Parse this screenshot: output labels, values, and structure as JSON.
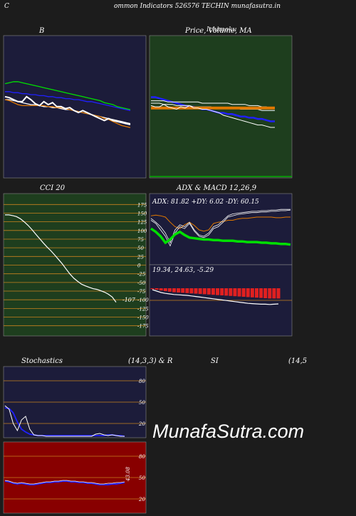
{
  "header": {
    "left_letter": "C",
    "title": "ommon  Indicators 526576  TECHIN  munafasutra.in"
  },
  "watermark": "MunafaSutra.com",
  "colors": {
    "page_bg": "#1c1c1c",
    "panel_navy": "#1c1c3a",
    "panel_green": "#1e3e1e",
    "panel_red": "#880000",
    "grid_orange": "#c8821e",
    "white": "#ffffff",
    "green_line": "#00e000",
    "blue_line": "#2020ff",
    "orange_line": "#e07800",
    "red_bar": "#e02020"
  },
  "panels": {
    "bollinger": {
      "title": "B"
    },
    "price_ma": {
      "title": "Price,  Volume,  MA",
      "title_overlay": "Ichimoku"
    },
    "cci": {
      "title": "CCI 20"
    },
    "adx_macd": {
      "title": "ADX  & MACD 12,26,9"
    },
    "stochastics": {
      "title_left": "Stochastics",
      "title_right": "(14,3,3) & R"
    },
    "rsi": {
      "title_left": "SI",
      "title_right": "(14,5"
    }
  },
  "chart_data": [
    {
      "id": "bollinger_bands",
      "type": "line",
      "title": "B",
      "x": [
        1,
        2,
        3,
        4,
        5,
        6,
        7,
        8,
        9,
        10,
        11,
        12,
        13,
        14,
        15,
        16,
        17,
        18,
        19,
        20,
        21,
        22,
        23,
        24,
        25,
        26,
        27,
        28,
        29,
        30
      ],
      "ylim": [
        0,
        100
      ],
      "series": [
        {
          "color": "#00e000",
          "values": [
            66,
            67,
            68,
            68,
            67,
            66,
            65,
            64,
            63,
            62,
            61,
            60,
            59,
            58,
            57,
            56,
            55,
            54,
            53,
            52,
            51,
            50,
            49,
            47,
            46,
            45,
            43,
            42,
            41,
            40
          ]
        },
        {
          "color": "#2020ff",
          "values": [
            58,
            58,
            57,
            57,
            56,
            56,
            55,
            55,
            54,
            54,
            53,
            53,
            52,
            52,
            51,
            51,
            50,
            50,
            49,
            48,
            48,
            47,
            46,
            45,
            44,
            43,
            42,
            41,
            40,
            39
          ]
        },
        {
          "color": "#ffffff",
          "values": [
            50,
            50,
            49,
            48,
            47,
            46,
            45,
            45,
            44,
            43,
            43,
            42,
            42,
            41,
            40,
            40,
            39,
            38,
            37,
            36,
            35,
            34,
            33,
            32,
            31,
            30,
            29,
            28,
            27,
            26
          ]
        },
        {
          "color": "#e07800",
          "values": [
            50,
            49,
            47,
            45,
            44,
            44,
            44,
            44,
            44,
            44,
            43,
            43,
            42,
            42,
            41,
            40,
            39,
            38,
            37,
            36,
            35,
            34,
            33,
            31,
            30,
            28,
            26,
            24,
            23,
            22
          ]
        },
        {
          "color": "#ffffff",
          "values": [
            53,
            52,
            50,
            48,
            48,
            53,
            50,
            46,
            44,
            48,
            45,
            47,
            43,
            43,
            41,
            42,
            39,
            37,
            39,
            37,
            35,
            33,
            31,
            29,
            31,
            29,
            28,
            27,
            26,
            25
          ]
        }
      ]
    },
    {
      "id": "price_volume_ma",
      "type": "line",
      "title": "Price,  Volume,  MA",
      "x": [
        1,
        2,
        3,
        4,
        5,
        6,
        7,
        8,
        9,
        10,
        11,
        12,
        13,
        14,
        15,
        16,
        17,
        18,
        19,
        20,
        21,
        22,
        23,
        24,
        25,
        26,
        27,
        28,
        29,
        30
      ],
      "ylim": [
        0,
        100
      ],
      "series": [
        {
          "color": "#2020ff",
          "values": [
            55,
            55,
            54,
            53,
            52,
            51,
            50,
            49,
            48,
            47,
            47,
            46,
            45,
            45,
            44,
            43,
            42,
            42,
            41,
            41,
            40,
            39,
            39,
            38,
            38,
            37,
            37,
            36,
            35,
            35
          ]
        },
        {
          "color": "#ffffff",
          "values": [
            52,
            52,
            52,
            52,
            51,
            51,
            51,
            51,
            51,
            51,
            51,
            51,
            50,
            50,
            50,
            50,
            50,
            50,
            50,
            49,
            49,
            49,
            49,
            48,
            48,
            48,
            47,
            47,
            46,
            46
          ]
        },
        {
          "color": "#ffffff",
          "values": [
            50,
            50,
            50,
            49,
            49,
            49,
            48,
            48,
            48,
            48,
            47,
            47,
            47,
            47,
            47,
            46,
            46,
            46,
            46,
            46,
            46,
            45,
            45,
            45,
            45,
            45,
            44,
            44,
            44,
            44
          ]
        },
        {
          "color": "#e07800",
          "values": [
            46,
            46,
            46,
            46,
            46,
            46,
            46,
            46,
            46,
            46,
            46,
            46,
            46,
            46,
            46,
            46,
            46,
            46,
            46,
            46,
            46,
            46,
            46,
            46,
            46,
            46,
            46,
            46,
            46,
            46
          ]
        },
        {
          "color": "#ffffff",
          "values": [
            48,
            47,
            47,
            49,
            47,
            46,
            45,
            47,
            46,
            48,
            46,
            46,
            45,
            45,
            44,
            43,
            42,
            40,
            39,
            38,
            37,
            36,
            35,
            34,
            33,
            32,
            32,
            31,
            30,
            30
          ]
        }
      ]
    },
    {
      "id": "cci",
      "type": "line",
      "title": "CCI 20",
      "yticks": [
        175,
        150,
        125,
        100,
        75,
        50,
        25,
        0,
        -25,
        -50,
        -75,
        -100,
        -125,
        -150,
        -175
      ],
      "ylim": [
        -190,
        190
      ],
      "last_value_label": "-107",
      "x": [
        1,
        2,
        3,
        4,
        5,
        6,
        7,
        8,
        9,
        10,
        11,
        12,
        13,
        14,
        15,
        16,
        17,
        18,
        19,
        20,
        21,
        22,
        23,
        24,
        25,
        26,
        27,
        28,
        29,
        30
      ],
      "values": [
        145,
        145,
        143,
        140,
        134,
        125,
        115,
        103,
        90,
        77,
        64,
        52,
        41,
        29,
        16,
        3,
        -12,
        -26,
        -38,
        -47,
        -55,
        -60,
        -64,
        -68,
        -70,
        -74,
        -78,
        -84,
        -92,
        -107
      ]
    },
    {
      "id": "adx",
      "type": "line",
      "title": "ADX  & MACD 12,26,9",
      "label": "ADX: 81.82  +DY: 6.02  -DY: 60.15",
      "ylim": [
        0,
        100
      ],
      "x": [
        1,
        2,
        3,
        4,
        5,
        6,
        7,
        8,
        9,
        10,
        11,
        12,
        13,
        14,
        15,
        16,
        17,
        18,
        19,
        20,
        21,
        22,
        23,
        24,
        25,
        26,
        27,
        28,
        29,
        30
      ],
      "series": [
        {
          "color": "#00e000",
          "values": [
            52,
            47,
            40,
            30,
            35,
            43,
            47,
            42,
            38,
            37,
            36,
            35,
            35,
            34,
            34,
            33,
            33,
            33,
            32,
            32,
            31,
            31,
            31,
            30,
            30,
            29,
            29,
            28,
            28,
            27
          ]
        },
        {
          "color": "#e07800",
          "values": [
            72,
            73,
            72,
            70,
            62,
            55,
            52,
            58,
            62,
            57,
            50,
            48,
            50,
            60,
            62,
            63,
            65,
            65,
            67,
            68,
            68,
            69,
            70,
            70,
            70,
            70,
            69,
            69,
            70,
            70
          ]
        },
        {
          "color": "#ffffff",
          "values": [
            68,
            62,
            55,
            45,
            30,
            50,
            58,
            55,
            62,
            50,
            42,
            40,
            45,
            55,
            58,
            65,
            72,
            75,
            76,
            77,
            78,
            79,
            79,
            80,
            80,
            81,
            81,
            82,
            82,
            82
          ]
        },
        {
          "color": "#ffffff",
          "values": [
            65,
            60,
            50,
            40,
            25,
            45,
            55,
            52,
            60,
            48,
            40,
            38,
            42,
            52,
            55,
            62,
            70,
            72,
            74,
            75,
            76,
            77,
            77,
            78,
            78,
            79,
            79,
            80,
            80,
            81
          ]
        }
      ]
    },
    {
      "id": "macd",
      "type": "bar",
      "label": "19.34,  24.63,  -5.29",
      "ylim": [
        -10,
        5
      ],
      "x": [
        1,
        2,
        3,
        4,
        5,
        6,
        7,
        8,
        9,
        10,
        11,
        12,
        13,
        14,
        15,
        16,
        17,
        18,
        19,
        20,
        21,
        22,
        23,
        24,
        25,
        26,
        27,
        28,
        29,
        30
      ],
      "series": [
        {
          "color": "#ffffff",
          "values": [
            -0.5,
            -1,
            -1.5,
            -1.8,
            -2,
            -2.2,
            -2.3,
            -2.4,
            -2.5,
            -2.7,
            -2.9,
            -3.1,
            -3.3,
            -3.5,
            -3.7,
            -3.9,
            -4.1,
            -4.3,
            -4.5,
            -4.7,
            -4.9,
            -5.1,
            -5.3,
            -5.4,
            -5.5,
            -5.6,
            -5.6,
            -5.7,
            -5.6,
            -5.5
          ]
        },
        {
          "color": "#e02020",
          "values": [
            -0.3,
            -0.5,
            -0.8,
            -1,
            -1.2,
            -1.4,
            -1.5,
            -1.6,
            -1.7,
            -1.8,
            -1.9,
            -2,
            -2.1,
            -2.2,
            -2.3,
            -2.4,
            -2.5,
            -2.6,
            -2.7,
            -2.8,
            -2.9,
            -3,
            -3.1,
            -3.2,
            -3.3,
            -3.4,
            -3.5,
            -3.6,
            -3.6,
            -3.6
          ]
        }
      ]
    },
    {
      "id": "stochastics",
      "type": "line",
      "title": "Stochastics",
      "yticks": [
        80,
        50,
        20
      ],
      "ylim": [
        0,
        100
      ],
      "x": [
        1,
        2,
        3,
        4,
        5,
        6,
        7,
        8,
        9,
        10,
        11,
        12,
        13,
        14,
        15,
        16,
        17,
        18,
        19,
        20,
        21,
        22,
        23,
        24,
        25,
        26,
        27,
        28,
        29,
        30
      ],
      "series": [
        {
          "color": "#2020ff",
          "values": [
            42,
            41,
            35,
            22,
            12,
            8,
            5,
            4,
            3,
            3,
            3,
            3,
            3,
            3,
            3,
            3,
            3,
            3,
            3,
            3,
            3,
            3,
            3,
            3,
            3,
            4,
            4,
            3,
            3,
            2
          ]
        },
        {
          "color": "#ffffff",
          "values": [
            45,
            40,
            20,
            10,
            25,
            30,
            12,
            4,
            3,
            3,
            2,
            2,
            2,
            2,
            2,
            2,
            2,
            2,
            2,
            2,
            2,
            2,
            5,
            6,
            4,
            3,
            4,
            3,
            2,
            2
          ]
        }
      ]
    },
    {
      "id": "rsi",
      "type": "line",
      "title": "SI",
      "yticks": [
        80,
        50,
        20
      ],
      "ylim": [
        0,
        100
      ],
      "last_value_label": "43.08",
      "x": [
        1,
        2,
        3,
        4,
        5,
        6,
        7,
        8,
        9,
        10,
        11,
        12,
        13,
        14,
        15,
        16,
        17,
        18,
        19,
        20,
        21,
        22,
        23,
        24,
        25,
        26,
        27,
        28,
        29,
        30
      ],
      "series": [
        {
          "color": "#2020ff",
          "values": [
            45,
            44,
            42,
            41,
            42,
            41,
            40,
            40,
            41,
            42,
            43,
            43,
            44,
            44,
            45,
            45,
            44,
            44,
            43,
            43,
            42,
            42,
            41,
            40,
            40,
            40,
            41,
            41,
            42,
            43
          ]
        },
        {
          "color": "#ffffff",
          "values": [
            46,
            45,
            43,
            42,
            43,
            42,
            41,
            41,
            42,
            43,
            44,
            44,
            45,
            45,
            46,
            46,
            45,
            45,
            44,
            44,
            43,
            43,
            42,
            41,
            41,
            42,
            42,
            43,
            43,
            44
          ]
        }
      ]
    }
  ]
}
